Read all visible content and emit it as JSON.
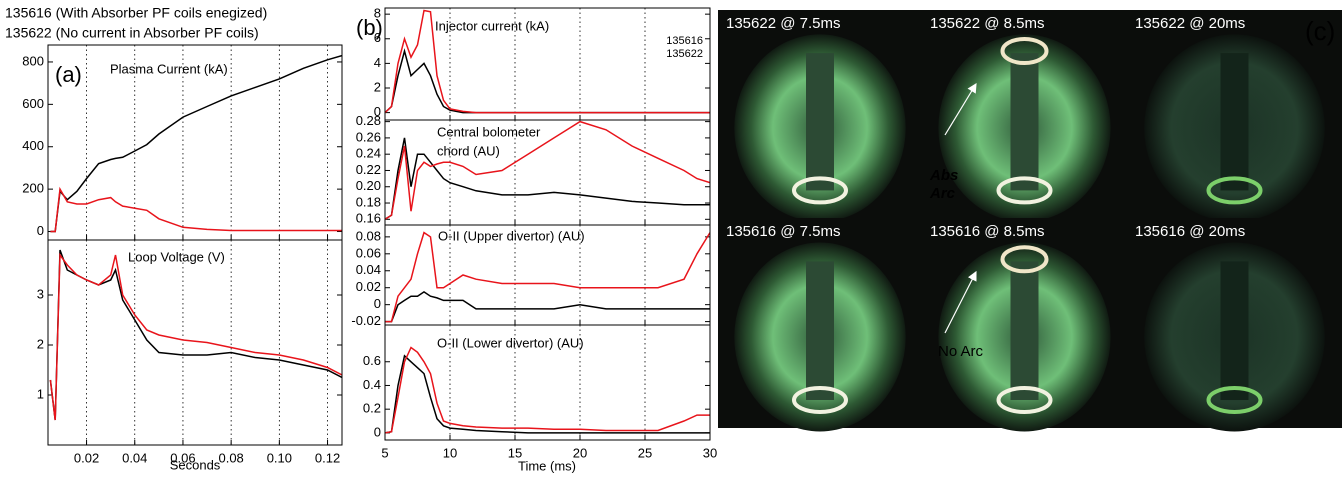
{
  "chart_data": [
    {
      "type": "line",
      "panel_label": "(a)",
      "title": "Plasma Current (kA)",
      "x": [
        0.005,
        0.007,
        0.009,
        0.012,
        0.016,
        0.02,
        0.025,
        0.03,
        0.032,
        0.035,
        0.04,
        0.045,
        0.05,
        0.06,
        0.07,
        0.08,
        0.09,
        0.1,
        0.11,
        0.12,
        0.126
      ],
      "series": [
        {
          "name": "135616 (With Absorber PF coils enegized)",
          "color": "#000000",
          "values": [
            0,
            0,
            190,
            150,
            190,
            250,
            320,
            340,
            345,
            350,
            380,
            410,
            460,
            540,
            590,
            640,
            680,
            720,
            770,
            810,
            830
          ]
        },
        {
          "name": "135622 (No current in Absorber PF coils)",
          "color": "#e8141b",
          "values": [
            0,
            0,
            200,
            140,
            130,
            130,
            150,
            160,
            140,
            120,
            110,
            100,
            60,
            20,
            10,
            5,
            5,
            5,
            5,
            5,
            5
          ]
        }
      ],
      "xlim": [
        0.004,
        0.126
      ],
      "xticks": [
        0.02,
        0.04,
        0.06,
        0.08,
        {
          "value": 0.1,
          "label": "0.10"
        },
        0.12
      ],
      "ylim": [
        -40,
        880
      ],
      "yticks": [
        0,
        200,
        400,
        600,
        800
      ],
      "grid": true
    },
    {
      "type": "line",
      "title": "Loop Voltage (V)",
      "xlabel": "Seconds",
      "x": [
        0.005,
        0.007,
        0.009,
        0.012,
        0.016,
        0.02,
        0.025,
        0.03,
        0.032,
        0.035,
        0.04,
        0.045,
        0.05,
        0.06,
        0.07,
        0.08,
        0.09,
        0.1,
        0.11,
        0.12,
        0.126
      ],
      "series": [
        {
          "color": "#000000",
          "values": [
            1.3,
            0.5,
            3.9,
            3.5,
            3.4,
            3.3,
            3.2,
            3.3,
            3.5,
            2.9,
            2.5,
            2.1,
            1.85,
            1.8,
            1.8,
            1.85,
            1.75,
            1.7,
            1.6,
            1.5,
            1.35
          ]
        },
        {
          "color": "#e8141b",
          "values": [
            1.3,
            0.5,
            3.8,
            3.6,
            3.4,
            3.3,
            3.2,
            3.4,
            3.8,
            3.0,
            2.6,
            2.3,
            2.2,
            2.1,
            2.05,
            1.95,
            1.85,
            1.8,
            1.7,
            1.55,
            1.4
          ]
        }
      ],
      "xlim": [
        0.004,
        0.126
      ],
      "xticks": [
        0.02,
        0.04,
        0.06,
        0.08,
        {
          "value": 0.1,
          "label": "0.10"
        },
        0.12
      ],
      "ylim": [
        0,
        4.1
      ],
      "yticks": [
        1,
        2,
        3
      ],
      "grid": true
    },
    {
      "type": "line",
      "panel_label": "(b)",
      "title": "Injector current (kA)",
      "x": [
        5,
        5.5,
        6,
        6.5,
        7,
        7.5,
        8,
        8.5,
        9,
        9.5,
        10,
        11,
        12,
        14,
        16,
        18,
        20,
        22,
        24,
        26,
        28,
        29,
        30
      ],
      "series": [
        {
          "name": "135616",
          "color": "#000000",
          "values": [
            0,
            0.5,
            3,
            5,
            3,
            3.5,
            4,
            3,
            1.5,
            0.5,
            0.2,
            0,
            0,
            0,
            0,
            0,
            0,
            0,
            0,
            0,
            0,
            0,
            0
          ]
        },
        {
          "name": "135622",
          "color": "#e8141b",
          "values": [
            0,
            0.5,
            4,
            6,
            4.5,
            5.5,
            8.3,
            8.2,
            3,
            1,
            0.3,
            0.1,
            0,
            0,
            0,
            0,
            0,
            0,
            0,
            0,
            0,
            0,
            0
          ]
        }
      ],
      "xlim": [
        5,
        30
      ],
      "xticks": [
        5,
        10,
        15,
        20,
        25,
        30
      ],
      "ylim": [
        -0.6,
        8.5
      ],
      "yticks": [
        0,
        2,
        4,
        6,
        8
      ],
      "grid": true
    },
    {
      "type": "line",
      "title": [
        "Central bolometer",
        "chord (AU)"
      ],
      "x": [
        5,
        5.5,
        6,
        6.5,
        7,
        7.5,
        8,
        8.5,
        9,
        9.5,
        10,
        11,
        12,
        14,
        16,
        18,
        20,
        22,
        24,
        26,
        28,
        29,
        30
      ],
      "series": [
        {
          "color": "#000000",
          "values": [
            0.16,
            0.165,
            0.22,
            0.26,
            0.2,
            0.24,
            0.24,
            0.23,
            0.22,
            0.21,
            0.205,
            0.2,
            0.195,
            0.19,
            0.19,
            0.193,
            0.19,
            0.186,
            0.182,
            0.18,
            0.178,
            0.178,
            0.178
          ]
        },
        {
          "color": "#e8141b",
          "values": [
            0.16,
            0.165,
            0.21,
            0.25,
            0.17,
            0.22,
            0.23,
            0.225,
            0.228,
            0.23,
            0.23,
            0.225,
            0.215,
            0.22,
            0.24,
            0.26,
            0.28,
            0.27,
            0.25,
            0.235,
            0.22,
            0.21,
            0.205
          ]
        }
      ],
      "xlim": [
        5,
        30
      ],
      "xticks": [
        5,
        10,
        15,
        20,
        25,
        30
      ],
      "ylim": [
        0.153,
        0.282
      ],
      "yticks": [
        0.16,
        0.18,
        {
          "value": 0.2,
          "label": "0.20"
        },
        0.22,
        0.24,
        0.26,
        0.28
      ],
      "grid": true
    },
    {
      "type": "line",
      "title": "O-II (Upper divertor) (AU)",
      "x": [
        5,
        5.5,
        6,
        6.5,
        7,
        7.5,
        8,
        8.5,
        9,
        9.5,
        10,
        11,
        12,
        14,
        16,
        18,
        20,
        22,
        24,
        26,
        28,
        29,
        30
      ],
      "series": [
        {
          "color": "#000000",
          "values": [
            -0.02,
            -0.02,
            0,
            0.005,
            0.01,
            0.01,
            0.015,
            0.01,
            0.008,
            0.005,
            0.005,
            0.005,
            -0.005,
            -0.005,
            -0.005,
            -0.005,
            0,
            -0.005,
            -0.005,
            -0.005,
            -0.005,
            -0.005,
            -0.005
          ]
        },
        {
          "color": "#e8141b",
          "values": [
            -0.02,
            -0.02,
            0.01,
            0.02,
            0.03,
            0.06,
            0.085,
            0.08,
            0.02,
            0.02,
            0.025,
            0.035,
            0.03,
            0.025,
            0.025,
            0.025,
            0.02,
            0.02,
            0.02,
            0.02,
            0.03,
            0.06,
            0.085
          ]
        }
      ],
      "xlim": [
        5,
        30
      ],
      "xticks": [
        5,
        10,
        15,
        20,
        25,
        30
      ],
      "ylim": [
        -0.024,
        0.094
      ],
      "yticks": [
        -0.02,
        0,
        0.02,
        0.04,
        0.06,
        0.08
      ],
      "grid": true
    },
    {
      "type": "line",
      "title": "O-II (Lower divertor) (AU)",
      "xlabel": "Time (ms)",
      "x": [
        5,
        5.5,
        6,
        6.5,
        7,
        7.5,
        8,
        8.5,
        9,
        9.5,
        10,
        11,
        12,
        14,
        16,
        18,
        20,
        22,
        24,
        26,
        28,
        29,
        30
      ],
      "series": [
        {
          "color": "#000000",
          "values": [
            0,
            0.01,
            0.4,
            0.65,
            0.6,
            0.55,
            0.5,
            0.3,
            0.12,
            0.06,
            0.04,
            0.03,
            0.02,
            0.01,
            0,
            0,
            0,
            0,
            0,
            0,
            0,
            0,
            0
          ]
        },
        {
          "color": "#e8141b",
          "values": [
            0,
            0.01,
            0.3,
            0.6,
            0.72,
            0.68,
            0.6,
            0.5,
            0.25,
            0.1,
            0.08,
            0.06,
            0.05,
            0.04,
            0.04,
            0.03,
            0.03,
            0.02,
            0.02,
            0.02,
            0.1,
            0.15,
            0.15
          ]
        }
      ],
      "xlim": [
        5,
        30
      ],
      "xticks": [
        5,
        10,
        15,
        20,
        25,
        30
      ],
      "ylim": [
        -0.06,
        0.91
      ],
      "yticks": [
        0,
        0.2,
        0.4,
        0.6
      ],
      "grid": true
    }
  ],
  "images": {
    "panel_label": "(c)",
    "frames": [
      "135622 @ 7.5ms",
      "135622 @ 8.5ms",
      "135622 @ 20ms",
      "135616 @ 7.5ms",
      "135616 @ 8.5ms",
      "135616 @ 20ms"
    ],
    "annotations": {
      "abs_arc": [
        "Abs",
        "Arc"
      ],
      "no_arc": "No Arc"
    }
  }
}
